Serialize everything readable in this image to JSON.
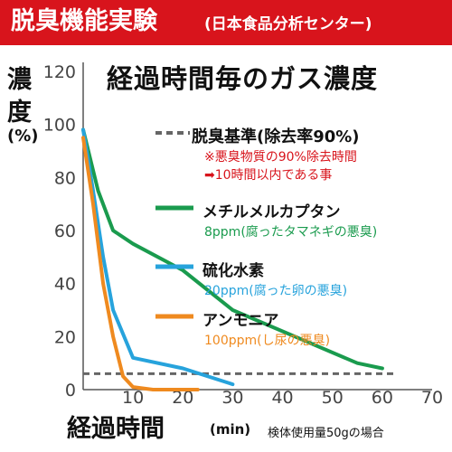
{
  "banner": {
    "title": "脱臭機能実験",
    "source": "(日本食品分析センター)",
    "color": "#d8141c"
  },
  "chart_data": {
    "type": "line",
    "title": "経過時間毎のガス濃度",
    "ylabel": [
      "濃",
      "度",
      "(%)"
    ],
    "xlabel": "経過時間",
    "xunit": "(min)",
    "note": "検体使用量50gの場合",
    "xlim": [
      0,
      70
    ],
    "ylim": [
      0,
      120
    ],
    "xticks": [
      10,
      20,
      30,
      40,
      50,
      60,
      70
    ],
    "yticks": [
      0,
      20,
      40,
      60,
      80,
      100,
      120
    ],
    "threshold": {
      "name": "脱臭基準(除去率90%)",
      "note1": "※悪臭物質の90%除去時間",
      "note2": "➡10時間以内である事",
      "value": 6,
      "color": "#666666"
    },
    "series": [
      {
        "name": "メチルメルカプタン",
        "description": "8ppm(腐ったタマネギの悪臭)",
        "color": "#1a9b4e",
        "x": [
          0,
          3,
          6,
          10,
          20,
          30,
          55,
          60
        ],
        "y": [
          98,
          75,
          60,
          55,
          45,
          30,
          10,
          8
        ]
      },
      {
        "name": "硫化水素",
        "description": "20ppm(腐った卵の悪臭)",
        "color": "#27a3dc",
        "x": [
          0,
          2,
          4,
          6,
          10,
          20,
          30
        ],
        "y": [
          98,
          75,
          50,
          30,
          12,
          8,
          2
        ]
      },
      {
        "name": "アンモニア",
        "description": "100ppm(し尿の悪臭)",
        "color": "#ef8a1f",
        "x": [
          0,
          2,
          4,
          6,
          8,
          10,
          14,
          23
        ],
        "y": [
          95,
          70,
          40,
          20,
          5,
          1,
          0,
          0
        ]
      }
    ]
  }
}
